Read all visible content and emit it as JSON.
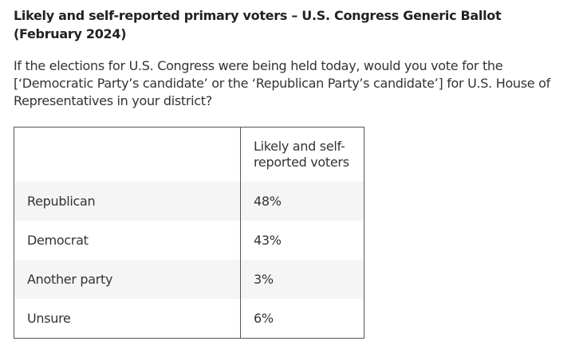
{
  "header": {
    "title": "Likely and self-reported primary voters – U.S. Congress Generic Ballot (February 2024)",
    "question": "If the elections for U.S. Congress were being held today, would you vote for the [‘Democratic Party’s candidate’ or the ‘Republican Party’s candidate’] for U.S. House of Representatives in your district?"
  },
  "table": {
    "headers": [
      "",
      "Likely and self-reported voters"
    ],
    "rows": [
      {
        "label": "Republican",
        "value": "48%"
      },
      {
        "label": "Democrat",
        "value": "43%"
      },
      {
        "label": "Another party",
        "value": "3%"
      },
      {
        "label": "Unsure",
        "value": "6%"
      }
    ]
  },
  "colors": {
    "text": "#222222",
    "border": "#555555",
    "stripe": "#f5f5f5"
  }
}
